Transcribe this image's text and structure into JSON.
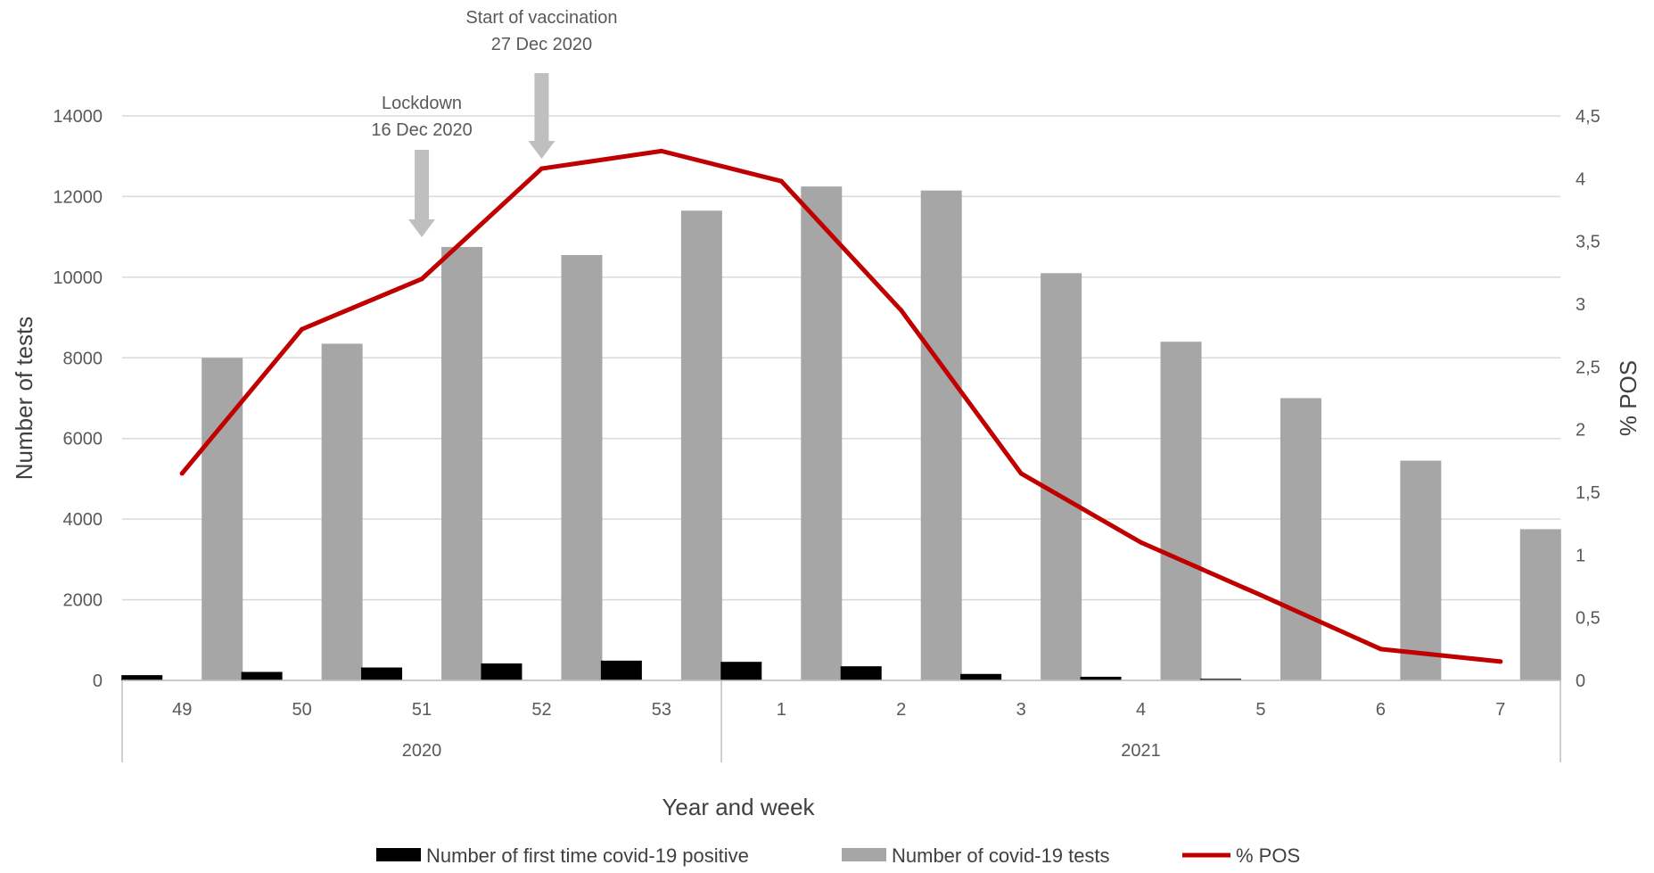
{
  "chart_data": {
    "type": "bar",
    "title": "",
    "xlabel": "Year and week",
    "ylabel": "Number of tests",
    "y2label": "% POS",
    "categories": [
      "49",
      "50",
      "51",
      "52",
      "53",
      "1",
      "2",
      "3",
      "4",
      "5",
      "6",
      "7"
    ],
    "groups": [
      {
        "label": "2020",
        "weeks": [
          "49",
          "50",
          "51",
          "52",
          "53"
        ]
      },
      {
        "label": "2021",
        "weeks": [
          "1",
          "2",
          "3",
          "4",
          "5",
          "6",
          "7"
        ]
      }
    ],
    "ylim": [
      0,
      14000
    ],
    "yticks": [
      "0",
      "2000",
      "4000",
      "6000",
      "8000",
      "10000",
      "12000",
      "14000"
    ],
    "y2lim": [
      0,
      4.5
    ],
    "y2ticks": [
      "0",
      "0,5",
      "1",
      "1,5",
      "2",
      "2,5",
      "3",
      "3,5",
      "4",
      "4,5"
    ],
    "grid": true,
    "legend_position": "bottom",
    "series": [
      {
        "name": "Number of first time covid-19 positive",
        "type": "bar",
        "axis": "left",
        "color": "#000000",
        "values": [
          130,
          210,
          320,
          420,
          490,
          460,
          350,
          160,
          90,
          40,
          10,
          5
        ]
      },
      {
        "name": "Number of covid-19 tests",
        "type": "bar",
        "axis": "left",
        "color": "#a6a6a6",
        "values": [
          8000,
          8350,
          10750,
          10550,
          11650,
          12250,
          12150,
          10100,
          8400,
          7000,
          5450,
          3750
        ]
      },
      {
        "name": "% POS",
        "type": "line",
        "axis": "right",
        "color": "#c00000",
        "values": [
          1.65,
          2.8,
          3.2,
          4.08,
          4.22,
          3.98,
          2.95,
          1.65,
          1.1,
          0.68,
          0.25,
          0.15
        ]
      }
    ],
    "annotations": [
      {
        "line1": "Lockdown",
        "line2": "16 Dec 2020",
        "category": "51",
        "arrow_color": "#bfbfbf"
      },
      {
        "line1": "Start of vaccination",
        "line2": "27 Dec 2020",
        "category": "52",
        "arrow_color": "#bfbfbf"
      }
    ]
  }
}
